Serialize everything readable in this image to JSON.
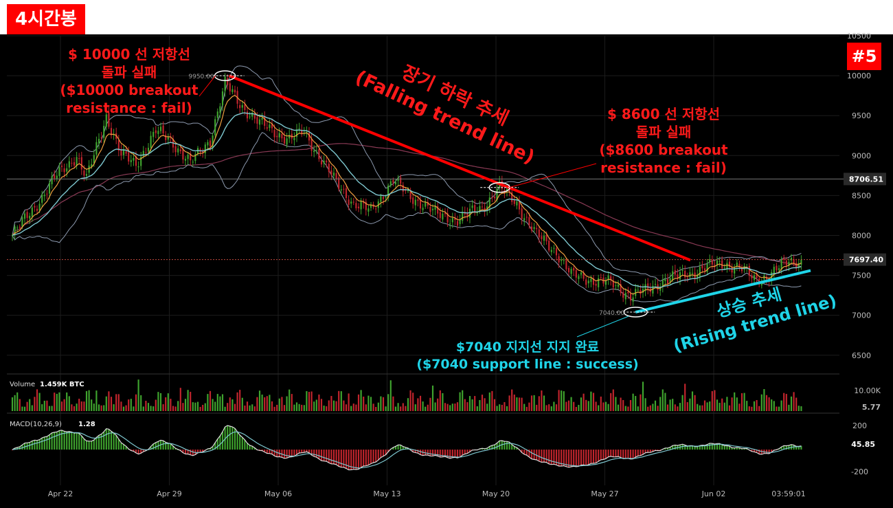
{
  "badges": {
    "timeframe": "4시간봉",
    "number": "#5"
  },
  "annotations": {
    "resistance_10000": {
      "lines": [
        "$ 10000 선 저항선",
        "돌파 실패",
        "($10000 breakout",
        "resistance : fail)"
      ]
    },
    "resistance_8600": {
      "lines": [
        "$ 8600 선 저항선",
        "돌파 실패",
        "($8600 breakout",
        "resistance : fail)"
      ]
    },
    "falling_trend": {
      "lines": [
        "장기 하락 추세",
        "(Falling trend line)"
      ]
    },
    "rising_trend": {
      "lines": [
        "상승 추세",
        "(Rising trend line)"
      ]
    },
    "support_7040": {
      "lines": [
        "$7040 지지선 지지 완료",
        "($7040 support line : success)"
      ]
    }
  },
  "colors": {
    "background": "#000000",
    "grid": "#1c1c1c",
    "up": "#3fa42e",
    "down": "#c2252d",
    "ema_fast": "#f0a040",
    "ema_slow": "#7ec8d0",
    "bb": "#8e9bb0",
    "ma_long": "#8a3a55",
    "falling_line": "#ff0000",
    "rising_line": "#1fd4e8",
    "axis_text": "#bbbbbb",
    "price_box": "#2a2a2a"
  },
  "chart_data": [
    {
      "type": "candlestick",
      "title": "",
      "y_axis": {
        "min": 6300,
        "max": 10500,
        "ticks": [
          6500,
          7000,
          7500,
          8000,
          8500,
          9000,
          9500,
          10000,
          10500
        ]
      },
      "x_axis": {
        "ticks": [
          "Apr 22",
          "Apr 29",
          "May 06",
          "May 13",
          "May 20",
          "May 27",
          "Jun 02"
        ],
        "end_label": "03:59:01"
      },
      "price_labels": [
        {
          "value": 8706.51,
          "text": "8706.51",
          "style": "line"
        },
        {
          "value": 7697.4,
          "text": "7697.40",
          "style": "last"
        }
      ],
      "markers": [
        {
          "label": "9950.00",
          "value": 10000,
          "date_index": 86
        },
        {
          "label": "",
          "value": 8600,
          "date_index": 197
        },
        {
          "label": "7040.00",
          "value": 7040,
          "date_index": 252
        }
      ],
      "waypoints": [
        [
          0,
          8000
        ],
        [
          10,
          8400
        ],
        [
          18,
          8750
        ],
        [
          26,
          9000
        ],
        [
          30,
          8700
        ],
        [
          38,
          9500
        ],
        [
          44,
          9000
        ],
        [
          50,
          8900
        ],
        [
          58,
          9300
        ],
        [
          64,
          9200
        ],
        [
          72,
          8900
        ],
        [
          80,
          9200
        ],
        [
          86,
          9900
        ],
        [
          92,
          9650
        ],
        [
          100,
          9400
        ],
        [
          112,
          9200
        ],
        [
          118,
          9300
        ],
        [
          124,
          9000
        ],
        [
          130,
          8700
        ],
        [
          138,
          8400
        ],
        [
          145,
          8300
        ],
        [
          154,
          8700
        ],
        [
          160,
          8500
        ],
        [
          166,
          8400
        ],
        [
          172,
          8250
        ],
        [
          180,
          8200
        ],
        [
          190,
          8350
        ],
        [
          197,
          8600
        ],
        [
          204,
          8400
        ],
        [
          212,
          8000
        ],
        [
          220,
          7800
        ],
        [
          226,
          7500
        ],
        [
          234,
          7450
        ],
        [
          242,
          7400
        ],
        [
          250,
          7250
        ],
        [
          256,
          7300
        ],
        [
          264,
          7450
        ],
        [
          272,
          7500
        ],
        [
          280,
          7600
        ],
        [
          288,
          7650
        ],
        [
          294,
          7600
        ],
        [
          300,
          7450
        ],
        [
          306,
          7500
        ],
        [
          314,
          7680
        ]
      ],
      "volume": {
        "label": "Volume",
        "value": "1.459K BTC",
        "ticks": [
          "10.00K",
          "5.77"
        ]
      },
      "macd": {
        "label": "MACD(10,26,9)",
        "value": "1.28",
        "ticks": [
          "200",
          "45.85",
          "-200"
        ]
      }
    }
  ]
}
